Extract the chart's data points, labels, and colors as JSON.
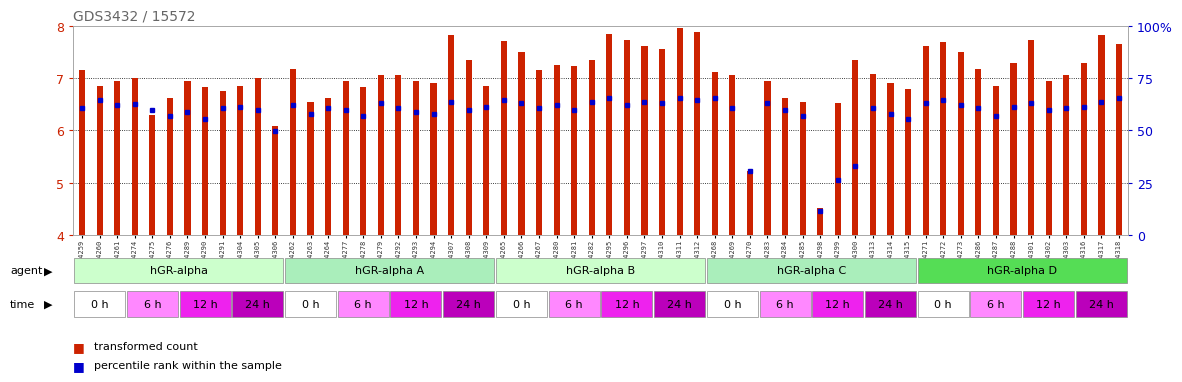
{
  "title": "GDS3432 / 15572",
  "samples": [
    "GSM154259",
    "GSM154260",
    "GSM154261",
    "GSM154274",
    "GSM154275",
    "GSM154276",
    "GSM154289",
    "GSM154290",
    "GSM154291",
    "GSM154304",
    "GSM154305",
    "GSM154306",
    "GSM154262",
    "GSM154263",
    "GSM154264",
    "GSM154277",
    "GSM154278",
    "GSM154279",
    "GSM154292",
    "GSM154293",
    "GSM154294",
    "GSM154307",
    "GSM154308",
    "GSM154309",
    "GSM154265",
    "GSM154266",
    "GSM154267",
    "GSM154280",
    "GSM154281",
    "GSM154282",
    "GSM154295",
    "GSM154296",
    "GSM154297",
    "GSM154310",
    "GSM154311",
    "GSM154312",
    "GSM154268",
    "GSM154269",
    "GSM154270",
    "GSM154283",
    "GSM154284",
    "GSM154285",
    "GSM154298",
    "GSM154299",
    "GSM154300",
    "GSM154313",
    "GSM154314",
    "GSM154315",
    "GSM154271",
    "GSM154272",
    "GSM154273",
    "GSM154286",
    "GSM154287",
    "GSM154288",
    "GSM154301",
    "GSM154302",
    "GSM154303",
    "GSM154316",
    "GSM154317",
    "GSM154318"
  ],
  "red_values": [
    7.15,
    6.85,
    6.95,
    7.0,
    6.3,
    6.62,
    6.95,
    6.82,
    6.75,
    6.85,
    7.0,
    6.08,
    7.18,
    6.55,
    6.62,
    6.95,
    6.82,
    7.05,
    7.05,
    6.95,
    6.9,
    7.82,
    7.35,
    6.85,
    7.7,
    7.5,
    7.15,
    7.25,
    7.22,
    7.35,
    7.85,
    7.72,
    7.62,
    7.55,
    7.95,
    7.88,
    7.12,
    7.05,
    5.22,
    6.95,
    6.62,
    6.55,
    4.52,
    6.52,
    7.35,
    7.08,
    6.9,
    6.78,
    7.62,
    7.68,
    7.5,
    7.18,
    6.85,
    7.28,
    7.72,
    6.95,
    7.05,
    7.28,
    7.82,
    7.65
  ],
  "blue_values": [
    6.42,
    6.58,
    6.48,
    6.5,
    6.38,
    6.28,
    6.35,
    6.22,
    6.42,
    6.45,
    6.38,
    5.98,
    6.48,
    6.32,
    6.42,
    6.38,
    6.28,
    6.52,
    6.42,
    6.35,
    6.32,
    6.55,
    6.38,
    6.45,
    6.58,
    6.52,
    6.42,
    6.48,
    6.38,
    6.55,
    6.62,
    6.48,
    6.55,
    6.52,
    6.62,
    6.58,
    6.62,
    6.42,
    5.22,
    6.52,
    6.38,
    6.28,
    4.45,
    5.05,
    5.32,
    6.42,
    6.32,
    6.22,
    6.52,
    6.58,
    6.48,
    6.42,
    6.28,
    6.45,
    6.52,
    6.38,
    6.42,
    6.45,
    6.55,
    6.62
  ],
  "agents": [
    "hGR-alpha",
    "hGR-alpha A",
    "hGR-alpha B",
    "hGR-alpha C",
    "hGR-alpha D"
  ],
  "agent_colors": [
    "#ccffcc",
    "#ccffcc",
    "#ccffcc",
    "#ccffcc",
    "#55dd55"
  ],
  "time_labels": [
    "0 h",
    "6 h",
    "12 h",
    "24 h"
  ],
  "time_colors_per_group": [
    [
      "#ffffff",
      "#ff88ff",
      "#ee22ee",
      "#bb00bb"
    ],
    [
      "#ffffff",
      "#ff88ff",
      "#ee22ee",
      "#bb00bb"
    ],
    [
      "#ffffff",
      "#ff88ff",
      "#ee22ee",
      "#bb00bb"
    ],
    [
      "#ffffff",
      "#ff88ff",
      "#ee22ee",
      "#bb00bb"
    ],
    [
      "#ffffff",
      "#ff88ff",
      "#ee22ee",
      "#bb00bb"
    ]
  ],
  "ylim": [
    4,
    8
  ],
  "yticks": [
    4,
    5,
    6,
    7,
    8
  ],
  "y2ticks": [
    0,
    25,
    50,
    75,
    100
  ],
  "bar_color": "#cc2200",
  "dot_color": "#0000cc",
  "bg_color": "#ffffff",
  "title_color": "#666666",
  "group_size": 12,
  "samples_per_time": 3
}
